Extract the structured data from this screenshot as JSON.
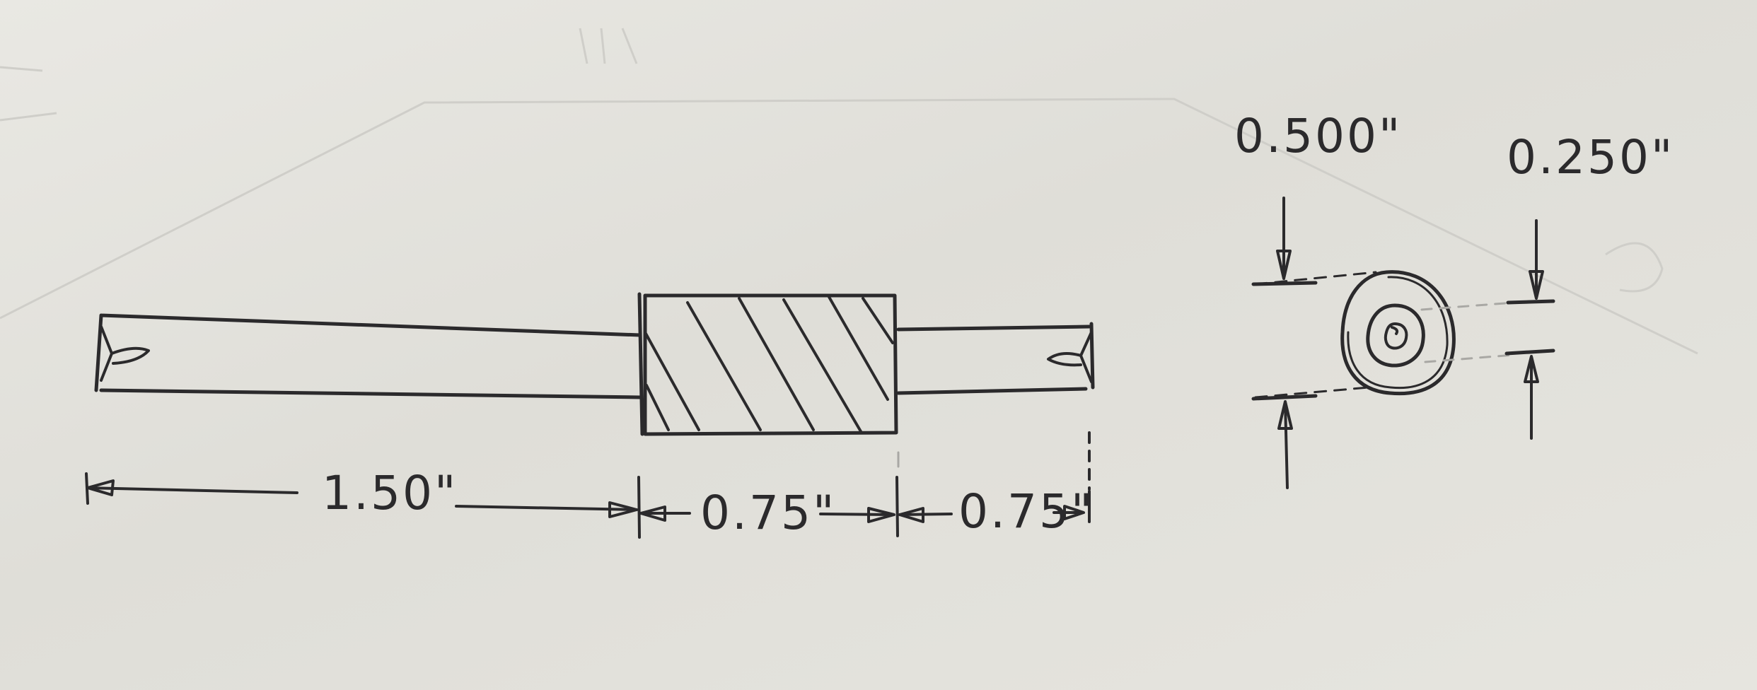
{
  "dimensions": {
    "left_shaft_length": "1.50\"",
    "center_section_length": "0.75\"",
    "right_shaft_length": "0.75\"",
    "outer_diameter": "0.500\"",
    "inner_diameter": "0.250\""
  },
  "colors": {
    "paper": "#e3e2dc",
    "pencil": "#2b2a2c"
  }
}
